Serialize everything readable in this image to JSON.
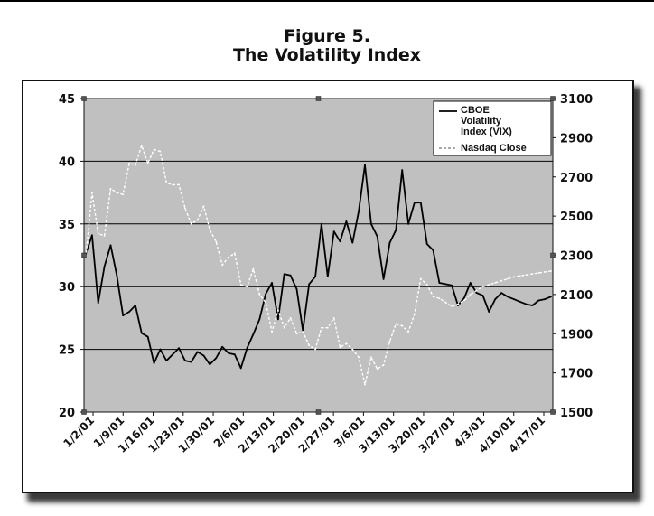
{
  "figure": {
    "label": "Figure 5.",
    "title": "The Volatility Index"
  },
  "colors": {
    "plot_bg": "#c0c0c0",
    "grid": "#000000",
    "vix_line": "#000000",
    "nasdaq_line": "#ffffff"
  },
  "chart_data": {
    "type": "line",
    "title": "The Volatility Index",
    "x_tick_labels": [
      "1/2/01",
      "1/9/01",
      "1/16/01",
      "1/23/01",
      "1/30/01",
      "2/6/01",
      "2/13/01",
      "2/20/01",
      "2/27/01",
      "3/6/01",
      "3/13/01",
      "3/20/01",
      "3/27/01",
      "4/3/01",
      "4/10/01",
      "4/17/01"
    ],
    "y_left": {
      "lim": [
        20,
        45
      ],
      "ticks": [
        "20",
        "25",
        "30",
        "35",
        "40",
        "45"
      ]
    },
    "y_right": {
      "lim": [
        1500,
        3100
      ],
      "ticks": [
        "1500",
        "1700",
        "1900",
        "2100",
        "2300",
        "2500",
        "2700",
        "2900",
        "3100"
      ]
    },
    "grid": "horizontal at left-axis ticks",
    "legend": {
      "placement": "top-right",
      "entries": [
        "CBOE Volatility Index (VIX)",
        "Nasdaq Close"
      ]
    },
    "series": [
      {
        "name": "CBOE Volatility Index (VIX)",
        "axis": "left",
        "style": "solid",
        "x": [
          "1/2/01",
          "1/3/01",
          "1/4/01",
          "1/5/01",
          "1/8/01",
          "1/9/01",
          "1/10/01",
          "1/11/01",
          "1/12/01",
          "1/16/01",
          "1/17/01",
          "1/18/01",
          "1/19/01",
          "1/22/01",
          "1/23/01",
          "1/24/01",
          "1/25/01",
          "1/26/01",
          "1/29/01",
          "1/30/01",
          "1/31/01",
          "2/1/01",
          "2/2/01",
          "2/5/01",
          "2/6/01",
          "2/7/01",
          "2/8/01",
          "2/9/01",
          "2/12/01",
          "2/13/01",
          "2/14/01",
          "2/15/01",
          "2/16/01",
          "2/20/01",
          "2/21/01",
          "2/22/01",
          "2/23/01",
          "2/26/01",
          "2/27/01",
          "2/28/01",
          "3/1/01",
          "3/2/01",
          "3/5/01",
          "3/6/01",
          "3/7/01",
          "3/8/01",
          "3/9/01",
          "3/12/01",
          "3/13/01",
          "3/14/01",
          "3/15/01",
          "3/16/01",
          "3/19/01",
          "3/20/01",
          "3/21/01",
          "3/22/01",
          "3/23/01",
          "3/26/01",
          "3/27/01",
          "3/28/01",
          "3/29/01",
          "3/30/01",
          "4/2/01",
          "4/3/01",
          "4/4/01",
          "4/5/01",
          "4/6/01",
          "4/9/01",
          "4/10/01",
          "4/11/01",
          "4/12/01",
          "4/16/01",
          "4/17/01",
          "4/18/01",
          "4/19/01",
          "4/20/01"
        ],
        "values": [
          32.6,
          34.1,
          28.7,
          31.6,
          33.3,
          30.9,
          27.7,
          28.0,
          28.5,
          26.3,
          26.0,
          23.9,
          25.0,
          24.1,
          24.6,
          25.1,
          24.1,
          24.0,
          24.8,
          24.5,
          23.8,
          24.3,
          25.2,
          24.7,
          24.6,
          23.5,
          25.1,
          26.2,
          27.4,
          29.4,
          30.3,
          27.4,
          31.0,
          30.9,
          29.8,
          26.5,
          30.2,
          30.8,
          35.0,
          30.8,
          34.4,
          33.6,
          35.2,
          33.5,
          36.0,
          39.7,
          35.0,
          34.0,
          30.6,
          33.5,
          34.5,
          39.3,
          35.0,
          36.7,
          36.7,
          33.4,
          32.9,
          30.3,
          30.2,
          30.1,
          28.5,
          29.1,
          30.3,
          29.5,
          29.3,
          28.0,
          29.0,
          29.5,
          29.2,
          29.0,
          28.8,
          28.6,
          28.5,
          28.9,
          29.0,
          29.2
        ],
        "note": "values read off the plotted line"
      },
      {
        "name": "Nasdaq Close",
        "axis": "right",
        "style": "dashed",
        "x": [
          "1/2/01",
          "1/3/01",
          "1/4/01",
          "1/5/01",
          "1/8/01",
          "1/9/01",
          "1/10/01",
          "1/11/01",
          "1/12/01",
          "1/16/01",
          "1/17/01",
          "1/18/01",
          "1/19/01",
          "1/22/01",
          "1/23/01",
          "1/24/01",
          "1/25/01",
          "1/26/01",
          "1/29/01",
          "1/30/01",
          "1/31/01",
          "2/1/01",
          "2/2/01",
          "2/5/01",
          "2/6/01",
          "2/7/01",
          "2/8/01",
          "2/9/01",
          "2/12/01",
          "2/13/01",
          "2/14/01",
          "2/15/01",
          "2/16/01",
          "2/20/01",
          "2/21/01",
          "2/22/01",
          "2/23/01",
          "2/26/01",
          "2/27/01",
          "2/28/01",
          "3/1/01",
          "3/2/01",
          "3/5/01",
          "3/6/01",
          "3/7/01",
          "3/8/01",
          "3/9/01",
          "3/12/01",
          "3/13/01",
          "3/14/01",
          "3/15/01",
          "3/16/01",
          "3/19/01",
          "3/20/01",
          "3/21/01",
          "3/22/01",
          "3/23/01",
          "3/26/01",
          "3/27/01",
          "3/28/01",
          "3/29/01",
          "3/30/01",
          "4/2/01",
          "4/3/01",
          "4/4/01",
          "4/5/01",
          "4/6/01",
          "4/9/01",
          "4/10/01",
          "4/11/01",
          "4/12/01",
          "4/16/01",
          "4/17/01",
          "4/18/01",
          "4/19/01",
          "4/20/01"
        ],
        "values": [
          2290,
          2620,
          2410,
          2400,
          2640,
          2620,
          2610,
          2770,
          2760,
          2860,
          2770,
          2840,
          2830,
          2670,
          2660,
          2660,
          2540,
          2460,
          2480,
          2550,
          2430,
          2370,
          2250,
          2290,
          2310,
          2150,
          2140,
          2230,
          2100,
          2060,
          1910,
          2020,
          1930,
          1980,
          1900,
          1910,
          1840,
          1820,
          1930,
          1930,
          1980,
          1830,
          1850,
          1820,
          1780,
          1640,
          1780,
          1720,
          1740,
          1860,
          1950,
          1940,
          1910,
          2000,
          2180,
          2150,
          2090,
          2080,
          2060,
          2040,
          2050,
          2070,
          2100,
          2120,
          2140,
          2150,
          2160,
          2170,
          2180,
          2190,
          2195,
          2200,
          2205,
          2210,
          2215,
          2220
        ],
        "note": "values read off the plotted line"
      }
    ]
  }
}
